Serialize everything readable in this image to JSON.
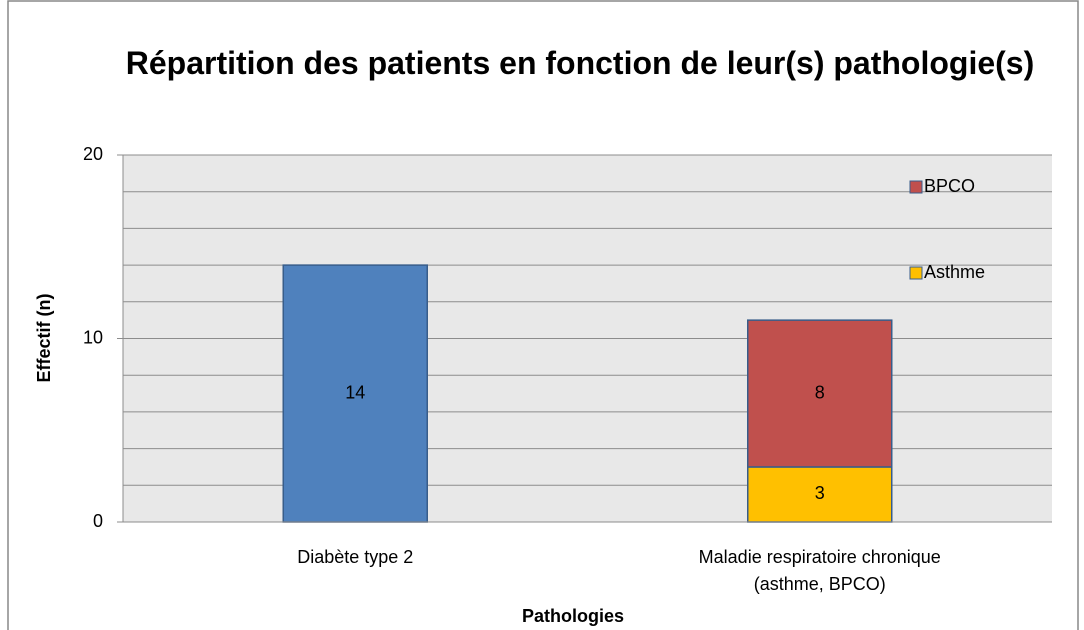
{
  "chart_data": {
    "type": "stacked_bar",
    "title": "Répartition des patients en fonction de leur(s) pathologie(s)",
    "x_label": "Pathologies",
    "y_label": "Effectif (n)",
    "categories": [
      "Diabète type 2",
      "Maladie respiratoire chronique (asthme, BPCO)"
    ],
    "series": [
      {
        "color": "#4f81bd",
        "values": [
          14,
          null
        ]
      },
      {
        "name": "Asthme",
        "color": "#ffc000",
        "values": [
          null,
          3
        ]
      },
      {
        "name": "BPCO",
        "color": "#c0504d",
        "values": [
          null,
          8
        ]
      }
    ],
    "ylim": [
      0,
      20
    ],
    "yticks": [
      0,
      10,
      20
    ],
    "grid_lines": [
      0,
      2,
      4,
      6,
      8,
      10,
      12,
      14,
      16,
      18,
      20
    ],
    "legend": "right"
  }
}
